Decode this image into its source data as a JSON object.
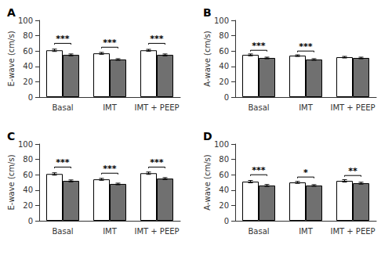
{
  "chart_data": [
    {
      "type": "bar",
      "title": "A",
      "ylabel": "E-wave (cm/s)",
      "categories": [
        "Basal",
        "IMT",
        "IMT + PEEP"
      ],
      "series": [
        {
          "color": "#ffffff",
          "values": [
            61,
            57,
            61
          ],
          "errors": [
            1.5,
            1.2,
            1.2
          ]
        },
        {
          "color": "#707070",
          "values": [
            55,
            49,
            55
          ],
          "errors": [
            1.2,
            1.0,
            1.2
          ]
        }
      ],
      "brackets": [
        {
          "category": "Basal",
          "stars": "***",
          "height": 70
        },
        {
          "category": "IMT",
          "stars": "***",
          "height": 65
        },
        {
          "category": "IMT + PEEP",
          "stars": "***",
          "height": 70
        }
      ],
      "ylim": [
        0,
        100
      ],
      "yticks": [
        0,
        20,
        40,
        60,
        80,
        100
      ],
      "grid": false
    },
    {
      "type": "bar",
      "title": "B",
      "ylabel": "A-wave (cm/s)",
      "categories": [
        "Basal",
        "IMT",
        "IMT + PEEP"
      ],
      "series": [
        {
          "color": "#ffffff",
          "values": [
            55,
            54,
            52
          ],
          "errors": [
            1.2,
            1.0,
            1.0
          ]
        },
        {
          "color": "#707070",
          "values": [
            51,
            49,
            51
          ],
          "errors": [
            1.0,
            1.0,
            1.0
          ]
        }
      ],
      "brackets": [
        {
          "category": "Basal",
          "stars": "***",
          "height": 61
        },
        {
          "category": "IMT",
          "stars": "***",
          "height": 60
        }
      ],
      "ylim": [
        0,
        100
      ],
      "yticks": [
        0,
        20,
        40,
        60,
        80,
        100
      ],
      "grid": false
    },
    {
      "type": "bar",
      "title": "C",
      "ylabel": "E-wave (cm/s)",
      "categories": [
        "Basal",
        "IMT",
        "IMT + PEEP"
      ],
      "series": [
        {
          "color": "#ffffff",
          "values": [
            61,
            54,
            62
          ],
          "errors": [
            1.5,
            1.2,
            1.5
          ]
        },
        {
          "color": "#707070",
          "values": [
            52,
            48,
            55
          ],
          "errors": [
            1.2,
            1.0,
            1.2
          ]
        }
      ],
      "brackets": [
        {
          "category": "Basal",
          "stars": "***",
          "height": 70
        },
        {
          "category": "IMT",
          "stars": "***",
          "height": 62
        },
        {
          "category": "IMT + PEEP",
          "stars": "***",
          "height": 70
        }
      ],
      "ylim": [
        0,
        100
      ],
      "yticks": [
        0,
        20,
        40,
        60,
        80,
        100
      ],
      "grid": false
    },
    {
      "type": "bar",
      "title": "D",
      "ylabel": "A-wave (cm/s)",
      "categories": [
        "Basal",
        "IMT",
        "IMT + PEEP"
      ],
      "series": [
        {
          "color": "#ffffff",
          "values": [
            51,
            50,
            52
          ],
          "errors": [
            1.5,
            1.2,
            1.5
          ]
        },
        {
          "color": "#707070",
          "values": [
            46,
            46,
            49
          ],
          "errors": [
            1.2,
            1.0,
            1.2
          ]
        }
      ],
      "brackets": [
        {
          "category": "Basal",
          "stars": "***",
          "height": 60
        },
        {
          "category": "IMT",
          "stars": "*",
          "height": 57
        },
        {
          "category": "IMT + PEEP",
          "stars": "**",
          "height": 59
        }
      ],
      "ylim": [
        0,
        100
      ],
      "yticks": [
        0,
        20,
        40,
        60,
        80,
        100
      ],
      "grid": false
    }
  ]
}
